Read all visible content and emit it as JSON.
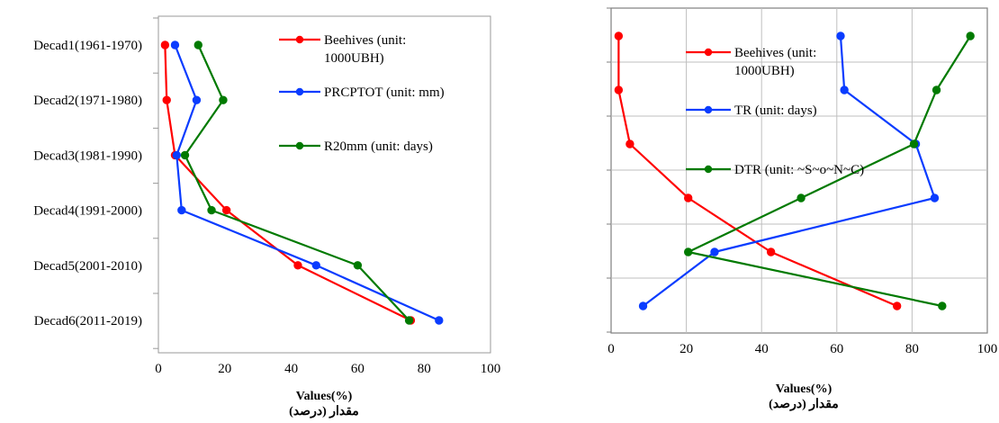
{
  "chart_data": [
    {
      "type": "line",
      "orientation": "horizontal-values",
      "categories": [
        "Decad1(1961-1970)",
        "Decad2(1971-1980)",
        "Decad3(1981-1990)",
        "Decad4(1991-2000)",
        "Decad5(2001-2010)",
        "Decad6(2011-2019)"
      ],
      "xlabel": "Values(%)",
      "xlabel_fa": "مقدار (درصد)",
      "xlim": [
        0,
        100
      ],
      "xticks": [
        "0",
        "20",
        "40",
        "60",
        "80",
        "100"
      ],
      "grid": false,
      "legend_position": "top-right",
      "series": [
        {
          "name": "Beehives (unit: 1000UBH)",
          "color": "#ff0000",
          "values": [
            2,
            2.5,
            5,
            20.5,
            42,
            76
          ]
        },
        {
          "name": "PRCPTOT (unit: mm)",
          "color": "#0a3cff",
          "values": [
            5,
            11.5,
            5.5,
            7,
            47.5,
            84.5
          ]
        },
        {
          "name": "R20mm (unit: days)",
          "color": "#007a00",
          "values": [
            12,
            19.5,
            8,
            16,
            60,
            75.5
          ]
        }
      ]
    },
    {
      "type": "line",
      "orientation": "horizontal-values",
      "categories": [
        "",
        "",
        "",
        "",
        "",
        ""
      ],
      "xlabel": "Values(%)",
      "xlabel_fa": "مقدار (درصد)",
      "xlim": [
        0,
        100
      ],
      "xticks": [
        "0",
        "20",
        "40",
        "60",
        "80",
        "100"
      ],
      "grid": true,
      "legend_position": "top-left",
      "series": [
        {
          "name": "Beehives (unit: 1000UBH)",
          "color": "#ff0000",
          "values": [
            2,
            2,
            5,
            20.5,
            42.5,
            76
          ]
        },
        {
          "name": "TR (unit: days)",
          "color": "#0a3cff",
          "values": [
            61,
            62,
            81,
            86,
            27.5,
            8.5
          ]
        },
        {
          "name": "DTR (unit: ~S~o~N~C)",
          "color": "#007a00",
          "values": [
            95.5,
            86.5,
            80.5,
            50.5,
            20.5,
            88
          ]
        }
      ]
    }
  ]
}
